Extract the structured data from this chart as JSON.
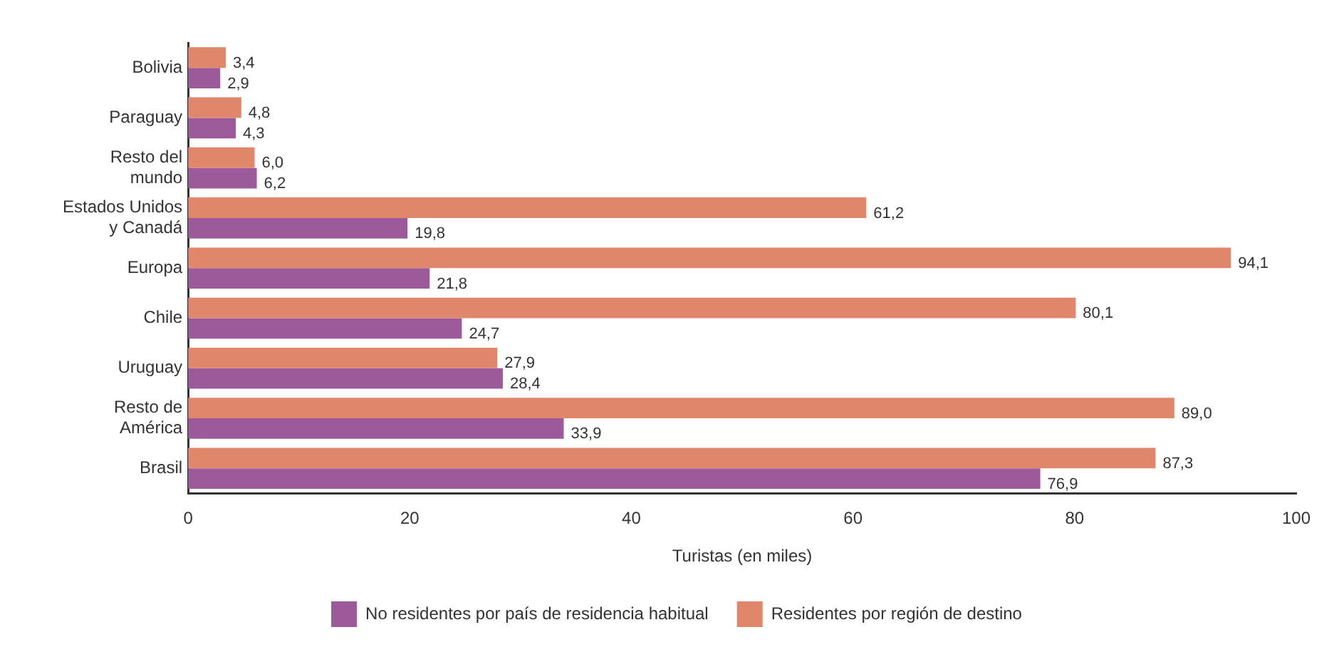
{
  "chart_data": {
    "type": "bar",
    "orientation": "horizontal",
    "xlabel": "Turistas (en miles)",
    "categories": [
      "Bolivia",
      "Paraguay",
      "Resto del\nmundo",
      "Estados Unidos\ny Canadá",
      "Europa",
      "Chile",
      "Uruguay",
      "Resto de\nAmérica",
      "Brasil"
    ],
    "series": [
      {
        "name": "Residentes por región de destino",
        "color": "#e0866a",
        "values": [
          3.4,
          4.8,
          6.0,
          61.2,
          94.1,
          80.1,
          27.9,
          89.0,
          87.3
        ],
        "value_labels": [
          "3,4",
          "4,8",
          "6,0",
          "61,2",
          "94,1",
          "80,1",
          "27,9",
          "89,0",
          "87,3"
        ]
      },
      {
        "name": "No residentes por país de residencia habitual",
        "color": "#9c5a9a",
        "values": [
          2.9,
          4.3,
          6.2,
          19.8,
          21.8,
          24.7,
          28.4,
          33.9,
          76.9
        ],
        "value_labels": [
          "2,9",
          "4,3",
          "6,2",
          "19,8",
          "21,8",
          "24,7",
          "28,4",
          "33,9",
          "76,9"
        ]
      }
    ],
    "xlim": [
      0,
      100
    ],
    "xticks": [
      0,
      20,
      40,
      60,
      80,
      100
    ],
    "grid": false,
    "legend": "bottom"
  }
}
